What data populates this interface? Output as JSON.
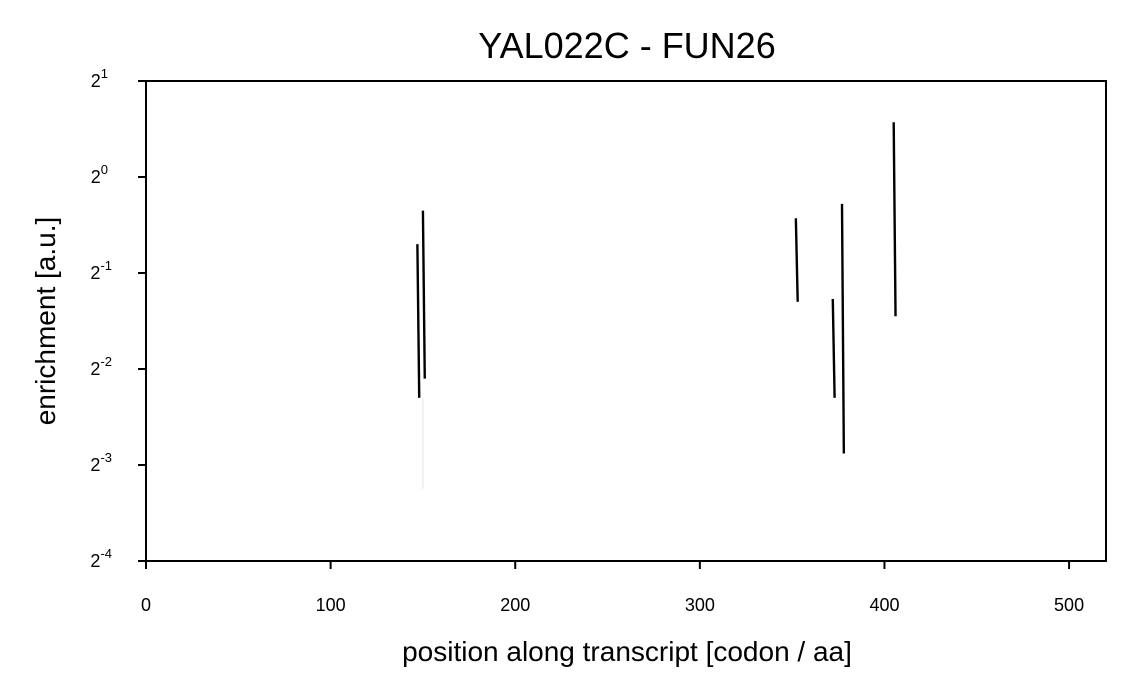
{
  "chart_data": {
    "type": "line",
    "title": "YAL022C - FUN26",
    "xlabel": "position along transcript [codon / aa]",
    "ylabel": "enrichment [a.u.]",
    "xlim": [
      0,
      520
    ],
    "ylim_log2": [
      -4,
      1
    ],
    "y_scale": "log2",
    "grid": false,
    "x_ticks": [
      {
        "value": 0,
        "label": "0"
      },
      {
        "value": 100,
        "label": "100"
      },
      {
        "value": 200,
        "label": "200"
      },
      {
        "value": 300,
        "label": "300"
      },
      {
        "value": 400,
        "label": "400"
      },
      {
        "value": 500,
        "label": "500"
      }
    ],
    "y_ticks": [
      {
        "exp": 1,
        "base": "2",
        "sup": "1"
      },
      {
        "exp": 0,
        "base": "2",
        "sup": "0"
      },
      {
        "exp": -1,
        "base": "2",
        "sup": "-1"
      },
      {
        "exp": -2,
        "base": "2",
        "sup": "-2"
      },
      {
        "exp": -3,
        "base": "2",
        "sup": "-3"
      },
      {
        "exp": -4,
        "base": "2",
        "sup": "-4"
      }
    ],
    "series": [
      {
        "color": "#000000",
        "segments": [
          {
            "x": [
              147,
              148
            ],
            "log2_y": [
              -0.7,
              -2.3
            ]
          },
          {
            "x": [
              150,
              151
            ],
            "log2_y": [
              -0.35,
              -2.1
            ]
          },
          {
            "x": [
              352,
              353
            ],
            "log2_y": [
              -0.43,
              -1.3
            ]
          },
          {
            "x": [
              372,
              373
            ],
            "log2_y": [
              -1.27,
              -2.3
            ]
          },
          {
            "x": [
              377,
              378
            ],
            "log2_y": [
              -0.28,
              -2.88
            ]
          },
          {
            "x": [
              405,
              406
            ],
            "log2_y": [
              0.57,
              -1.45
            ]
          }
        ]
      }
    ],
    "faint_segments": [
      {
        "x": [
          150,
          150
        ],
        "log2_y": [
          -2.3,
          -3.25
        ]
      }
    ]
  }
}
